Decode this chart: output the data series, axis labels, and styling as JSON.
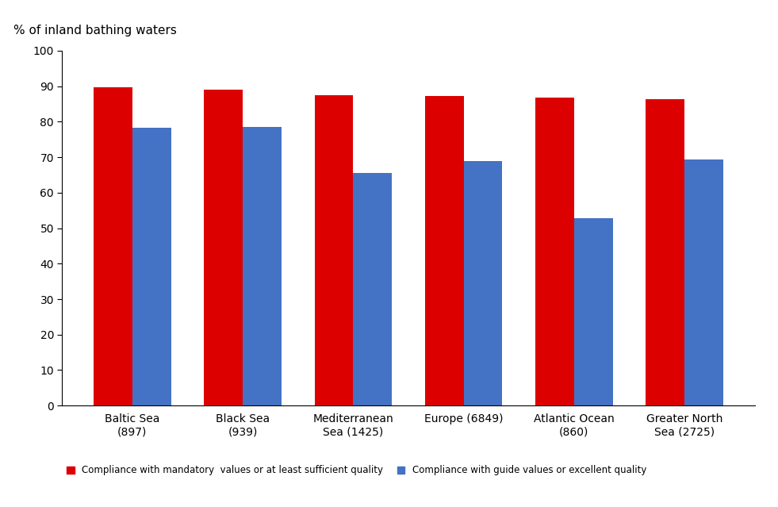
{
  "categories": [
    "Baltic Sea\n(897)",
    "Black Sea\n(939)",
    "Mediterranean\nSea (1425)",
    "Europe (6849)",
    "Atlantic Ocean\n(860)",
    "Greater North\nSea (2725)"
  ],
  "red_values": [
    89.8,
    89.0,
    87.5,
    87.3,
    86.8,
    86.3
  ],
  "blue_values": [
    78.2,
    78.5,
    65.5,
    69.0,
    52.8,
    69.3
  ],
  "red_color": "#dd0000",
  "blue_color": "#4472c4",
  "title": "% of inland bathing waters",
  "ylim": [
    0,
    100
  ],
  "yticks": [
    0,
    10,
    20,
    30,
    40,
    50,
    60,
    70,
    80,
    90,
    100
  ],
  "legend_red": "Compliance with mandatory  values or at least sufficient quality",
  "legend_blue": "Compliance with guide values or excellent quality",
  "bar_width": 0.35
}
